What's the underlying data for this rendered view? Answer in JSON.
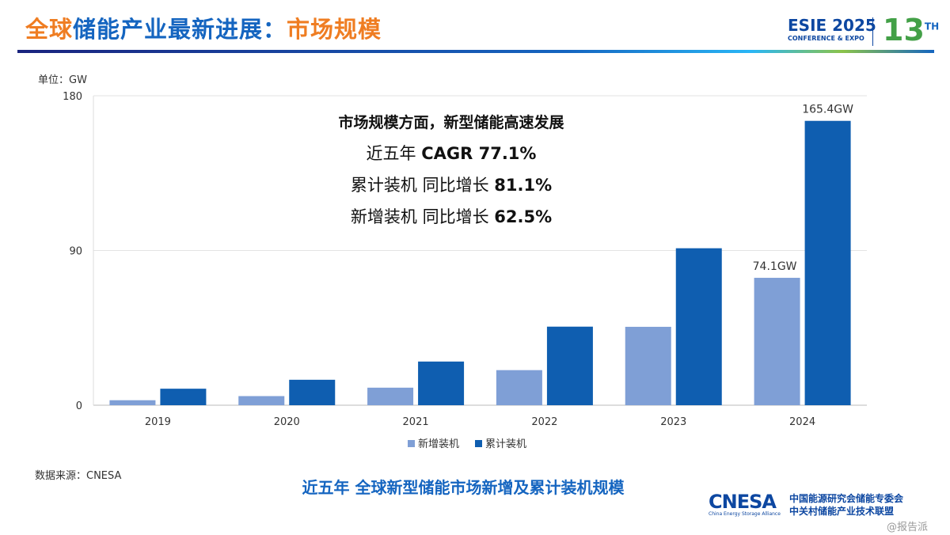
{
  "header": {
    "title_part1": "全球",
    "title_part2": "储能产业最新进展：",
    "title_part3": "市场规模",
    "logo_main": "ESIE 2025",
    "logo_sub": "CONFERENCE & EXPO",
    "edition": "13",
    "edition_sup": "TH"
  },
  "unit": "单位：GW",
  "annotations": {
    "line1": "市场规模方面，新型储能高速发展",
    "line2_prefix": "近五年 ",
    "line2_value": "CAGR 77.1%",
    "line3_prefix": "累计装机 同比增长 ",
    "line3_value": "81.1%",
    "line4_prefix": "新增装机 同比增长 ",
    "line4_value": "62.5%"
  },
  "source": "数据来源：CNESA",
  "caption": "近五年 全球新型储能市场新增及累计装机规模",
  "footer": {
    "brand": "CNESA",
    "brand_cn1": "中国能源研究会储能专委会",
    "brand_cn2": "中关村储能产业技术联盟",
    "brand_en": "China Energy Storage Alliance",
    "watermark": "@报告派"
  },
  "colors": {
    "new": "#7f9fd6",
    "cumulative": "#0f5eb0",
    "orange": "#ef7d22",
    "blue": "#1565c0"
  },
  "chart_data": {
    "type": "bar",
    "categories": [
      "2019",
      "2020",
      "2021",
      "2022",
      "2023",
      "2024"
    ],
    "series": [
      {
        "name": "新增装机",
        "values": [
          2.9,
          5.3,
          10.2,
          20.4,
          45.6,
          74.1
        ]
      },
      {
        "name": "累计装机",
        "values": [
          9.6,
          14.8,
          25.4,
          45.7,
          91.3,
          165.4
        ]
      }
    ],
    "data_labels": {
      "new_2024": "74.1GW",
      "cum_2024": "165.4GW"
    },
    "yticks": [
      "0",
      "90",
      "180"
    ],
    "ylim": [
      0,
      180
    ],
    "grid": true,
    "legend": "bottom"
  }
}
